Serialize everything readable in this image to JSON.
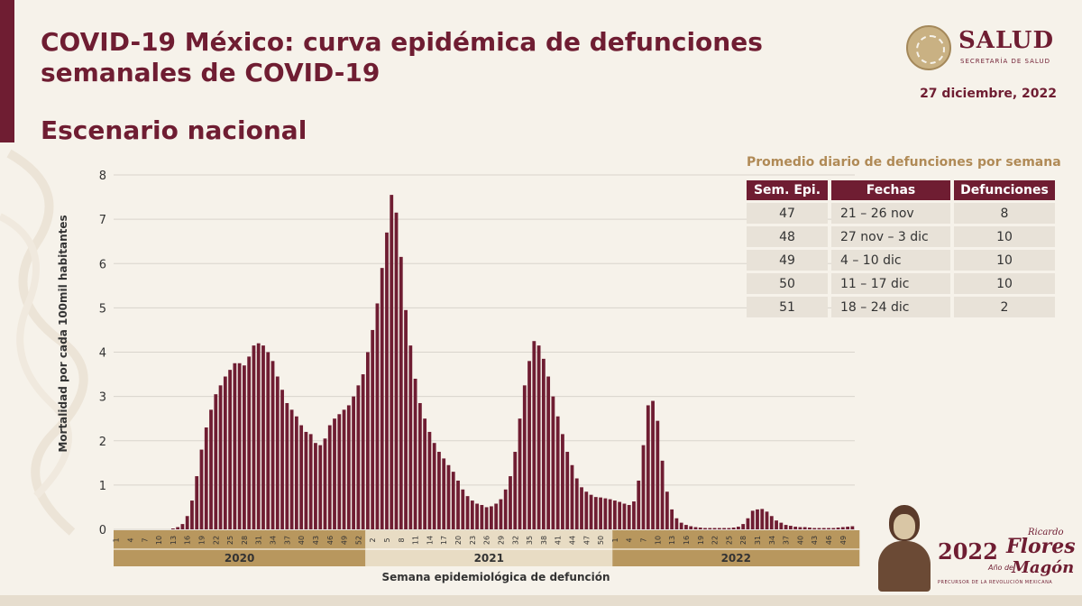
{
  "header": {
    "title": "COVID-19 México: curva epidémica de defunciones semanales de COVID-19",
    "subtitle": "Escenario nacional",
    "date": "27 diciembre, 2022"
  },
  "logo": {
    "name": "SALUD",
    "sub": "SECRETARÍA DE SALUD"
  },
  "colors": {
    "brand": "#6f1d32",
    "bar": "#6f1d32",
    "gold": "#b8975e",
    "gold_light": "#e8dcc4"
  },
  "table": {
    "title": "Promedio diario de defunciones por semana",
    "headers": [
      "Sem. Epi.",
      "Fechas",
      "Defunciones"
    ],
    "rows": [
      [
        "47",
        "21 – 26 nov",
        "8"
      ],
      [
        "48",
        "27 nov – 3 dic",
        "10"
      ],
      [
        "49",
        "4 – 10 dic",
        "10"
      ],
      [
        "50",
        "11 – 17 dic",
        "10"
      ],
      [
        "51",
        "18 – 24 dic",
        "2"
      ]
    ]
  },
  "footer_logo": {
    "year": "2022",
    "ano_de": "Año de",
    "name_1": "Ricardo",
    "name_2": "Flores",
    "name_3": "Magón",
    "tagline": "PRECURSOR DE LA REVOLUCIÓN MEXICANA"
  },
  "chart_data": {
    "type": "bar",
    "title": "",
    "xlabel": "Semana epidemiológica de defunción",
    "ylabel": "Mortalidad por cada 100mil habitantes",
    "ylim": [
      0,
      8
    ],
    "yticks": [
      0,
      1,
      2,
      3,
      4,
      5,
      6,
      7,
      8
    ],
    "grid": true,
    "years": [
      {
        "label": "2020",
        "weeks": 53
      },
      {
        "label": "2021",
        "weeks": 52
      },
      {
        "label": "2022",
        "weeks": 52
      }
    ],
    "year_tick_labels": [
      [
        "1",
        "4",
        "7",
        "10",
        "13",
        "16",
        "19",
        "22",
        "25",
        "28",
        "31",
        "34",
        "37",
        "40",
        "43",
        "46",
        "49",
        "52"
      ],
      [
        "2",
        "5",
        "8",
        "11",
        "14",
        "17",
        "20",
        "23",
        "26",
        "29",
        "32",
        "35",
        "38",
        "41",
        "44",
        "47",
        "50"
      ],
      [
        "1",
        "4",
        "7",
        "10",
        "13",
        "16",
        "19",
        "22",
        "25",
        "28",
        "31",
        "34",
        "37",
        "40",
        "43",
        "46",
        "49"
      ]
    ],
    "values": [
      0,
      0,
      0,
      0,
      0,
      0,
      0,
      0,
      0,
      0,
      0,
      0,
      0.02,
      0.05,
      0.12,
      0.3,
      0.65,
      1.2,
      1.8,
      2.3,
      2.7,
      3.05,
      3.25,
      3.45,
      3.6,
      3.75,
      3.75,
      3.7,
      3.9,
      4.15,
      4.2,
      4.15,
      4.0,
      3.8,
      3.45,
      3.15,
      2.85,
      2.7,
      2.55,
      2.35,
      2.2,
      2.15,
      1.95,
      1.9,
      2.05,
      2.35,
      2.5,
      2.6,
      2.7,
      2.8,
      3.0,
      3.25,
      3.5,
      4.0,
      4.5,
      5.1,
      5.9,
      6.7,
      7.55,
      7.15,
      6.15,
      4.95,
      4.15,
      3.4,
      2.85,
      2.5,
      2.2,
      1.95,
      1.75,
      1.6,
      1.45,
      1.3,
      1.1,
      0.9,
      0.75,
      0.65,
      0.58,
      0.55,
      0.5,
      0.52,
      0.58,
      0.68,
      0.9,
      1.2,
      1.75,
      2.5,
      3.25,
      3.8,
      4.25,
      4.15,
      3.85,
      3.45,
      3.0,
      2.55,
      2.15,
      1.75,
      1.45,
      1.15,
      0.95,
      0.85,
      0.78,
      0.73,
      0.72,
      0.7,
      0.68,
      0.65,
      0.62,
      0.58,
      0.55,
      0.63,
      1.1,
      1.9,
      2.8,
      2.9,
      2.45,
      1.55,
      0.85,
      0.45,
      0.25,
      0.15,
      0.1,
      0.07,
      0.05,
      0.04,
      0.03,
      0.03,
      0.03,
      0.03,
      0.03,
      0.03,
      0.04,
      0.06,
      0.12,
      0.25,
      0.42,
      0.45,
      0.46,
      0.4,
      0.3,
      0.2,
      0.15,
      0.1,
      0.08,
      0.06,
      0.05,
      0.05,
      0.04,
      0.03,
      0.03,
      0.03,
      0.03,
      0.03,
      0.04,
      0.05,
      0.06,
      0.07
    ]
  }
}
